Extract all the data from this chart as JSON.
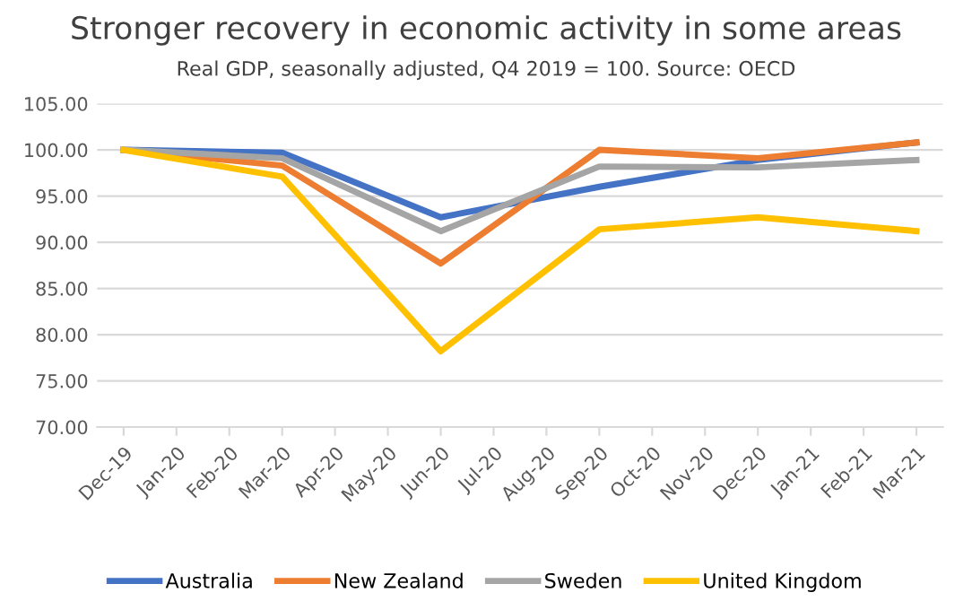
{
  "chart_data": {
    "type": "line",
    "title": "Stronger recovery in economic activity in some areas",
    "subtitle": "Real GDP, seasonally adjusted, Q4 2019 = 100. Source: OECD",
    "categories": [
      "Dec-19",
      "Jan-20",
      "Feb-20",
      "Mar-20",
      "Apr-20",
      "May-20",
      "Jun-20",
      "Jul-20",
      "Aug-20",
      "Sep-20",
      "Oct-20",
      "Nov-20",
      "Dec-20",
      "Jan-21",
      "Feb-21",
      "Mar-21"
    ],
    "series": [
      {
        "name": "Australia",
        "color": "#4472c4",
        "values": [
          100,
          null,
          null,
          99.7,
          null,
          null,
          92.7,
          null,
          null,
          96.0,
          null,
          null,
          98.9,
          null,
          null,
          100.8
        ]
      },
      {
        "name": "New Zealand",
        "color": "#ed7d31",
        "values": [
          100,
          null,
          null,
          98.3,
          null,
          null,
          87.7,
          null,
          null,
          100.0,
          null,
          null,
          99.1,
          null,
          null,
          100.8
        ]
      },
      {
        "name": "Sweden",
        "color": "#a5a5a5",
        "values": [
          100,
          null,
          null,
          99.1,
          null,
          null,
          91.2,
          null,
          null,
          98.2,
          null,
          null,
          98.1,
          null,
          null,
          98.9
        ]
      },
      {
        "name": "United Kingdom",
        "color": "#ffc000",
        "values": [
          100,
          null,
          null,
          97.1,
          null,
          null,
          78.2,
          null,
          null,
          91.4,
          null,
          null,
          92.7,
          null,
          null,
          91.2
        ]
      }
    ],
    "ylim": [
      70,
      105
    ],
    "yticks": [
      {
        "value": 70,
        "label": "70.00"
      },
      {
        "value": 75,
        "label": "75.00"
      },
      {
        "value": 80,
        "label": "80.00"
      },
      {
        "value": 85,
        "label": "85.00"
      },
      {
        "value": 90,
        "label": "90.00"
      },
      {
        "value": 95,
        "label": "95.00"
      },
      {
        "value": 100,
        "label": "100.00"
      },
      {
        "value": 105,
        "label": "105.00"
      }
    ],
    "grid": "y",
    "legend": "bottom",
    "marker": "none",
    "line_style": "solid"
  }
}
